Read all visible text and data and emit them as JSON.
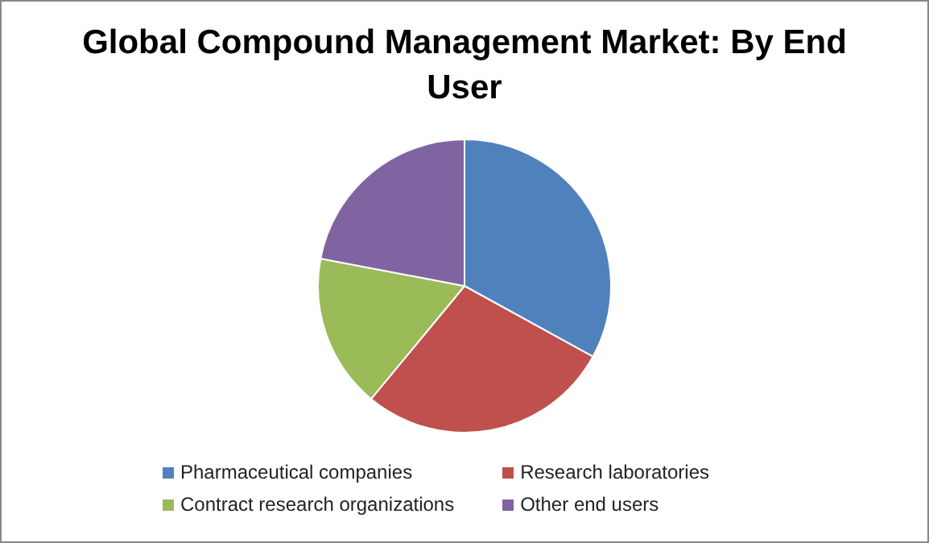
{
  "chart_data": {
    "type": "pie",
    "title": "Global Compound Management Market: By End User",
    "categories": [
      "Pharmaceutical companies",
      "Research laboratories",
      "Contract research organizations",
      "Other end users"
    ],
    "values": [
      33,
      28,
      17,
      22
    ],
    "colors": [
      "#4f81bd",
      "#c0504d",
      "#9bbb59",
      "#8064a2"
    ],
    "legend": "bottom"
  }
}
